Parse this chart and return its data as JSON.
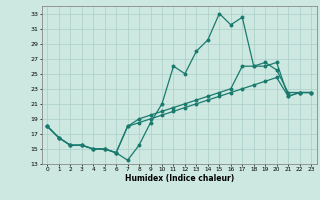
{
  "xlabel": "Humidex (Indice chaleur)",
  "background_color": "#cce8e0",
  "grid_color": "#aacfc8",
  "line_color": "#1a7a6e",
  "xlim": [
    -0.5,
    23.5
  ],
  "ylim": [
    13,
    34
  ],
  "yticks": [
    13,
    15,
    17,
    19,
    21,
    23,
    25,
    27,
    29,
    31,
    33
  ],
  "xticks": [
    0,
    1,
    2,
    3,
    4,
    5,
    6,
    7,
    8,
    9,
    10,
    11,
    12,
    13,
    14,
    15,
    16,
    17,
    18,
    19,
    20,
    21,
    22,
    23
  ],
  "line1_x": [
    0,
    1,
    2,
    3,
    4,
    5,
    6,
    7,
    8,
    9,
    10,
    11,
    12,
    13,
    14,
    15,
    16,
    17,
    18,
    19,
    20,
    21,
    22,
    23
  ],
  "line1_y": [
    18,
    16.5,
    15.5,
    15.5,
    15,
    15,
    14.5,
    13.5,
    15.5,
    18.5,
    21,
    26,
    25,
    28,
    29.5,
    33,
    31.5,
    32.5,
    26,
    26.5,
    25.5,
    22.5,
    22.5,
    22.5
  ],
  "line2_x": [
    0,
    1,
    2,
    3,
    4,
    5,
    6,
    7,
    8,
    9,
    10,
    11,
    12,
    13,
    14,
    15,
    16,
    17,
    18,
    19,
    20,
    21,
    22,
    23
  ],
  "line2_y": [
    18,
    16.5,
    15.5,
    15.5,
    15,
    15,
    14.5,
    18,
    18.5,
    19,
    19.5,
    20,
    20.5,
    21,
    21.5,
    22,
    22.5,
    23,
    23.5,
    24,
    24.5,
    22,
    22.5,
    22.5
  ],
  "line3_x": [
    0,
    1,
    2,
    3,
    4,
    5,
    6,
    7,
    8,
    9,
    10,
    11,
    12,
    13,
    14,
    15,
    16,
    17,
    18,
    19,
    20,
    21,
    22,
    23
  ],
  "line3_y": [
    18,
    16.5,
    15.5,
    15.5,
    15,
    15,
    14.5,
    18,
    19,
    19.5,
    20,
    20.5,
    21,
    21.5,
    22,
    22.5,
    23,
    26,
    26,
    26,
    26.5,
    22,
    22.5,
    22.5
  ]
}
